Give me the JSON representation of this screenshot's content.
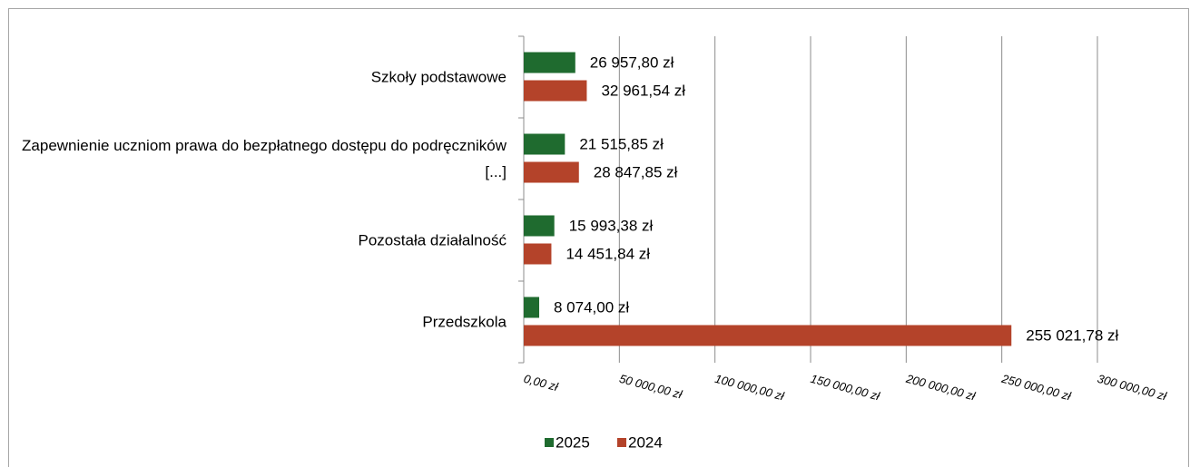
{
  "chart_data": {
    "type": "bar",
    "orientation": "horizontal",
    "categories": [
      "Szkoły podstawowe",
      "Zapewnienie uczniom prawa do bezpłatnego dostępu do podręczników [...]",
      "Pozostała działalność",
      "Przedszkola"
    ],
    "series": [
      {
        "name": "2025",
        "color": "#1f6b2f",
        "values": [
          26957.8,
          21515.85,
          15993.38,
          8074.0
        ],
        "value_labels": [
          "26 957,80 zł",
          "21 515,85 zł",
          "15 993,38 zł",
          "8 074,00 zł"
        ]
      },
      {
        "name": "2024",
        "color": "#b4432a",
        "values": [
          32961.54,
          28847.85,
          14451.84,
          255021.78
        ],
        "value_labels": [
          "32 961,54 zł",
          "28 847,85 zł",
          "14 451,84 zł",
          "255 021,78 zł"
        ]
      }
    ],
    "xlim": [
      0,
      300000
    ],
    "xticks": [
      {
        "value": 0,
        "label": "0,00 zł"
      },
      {
        "value": 50000,
        "label": "50 000,00 zł"
      },
      {
        "value": 100000,
        "label": "100 000,00 zł"
      },
      {
        "value": 150000,
        "label": "150 000,00 zł"
      },
      {
        "value": 200000,
        "label": "200 000,00 zł"
      },
      {
        "value": 250000,
        "label": "250 000,00 zł"
      },
      {
        "value": 300000,
        "label": "300 000,00 zł"
      }
    ],
    "grid": true,
    "legend": "bottom"
  }
}
